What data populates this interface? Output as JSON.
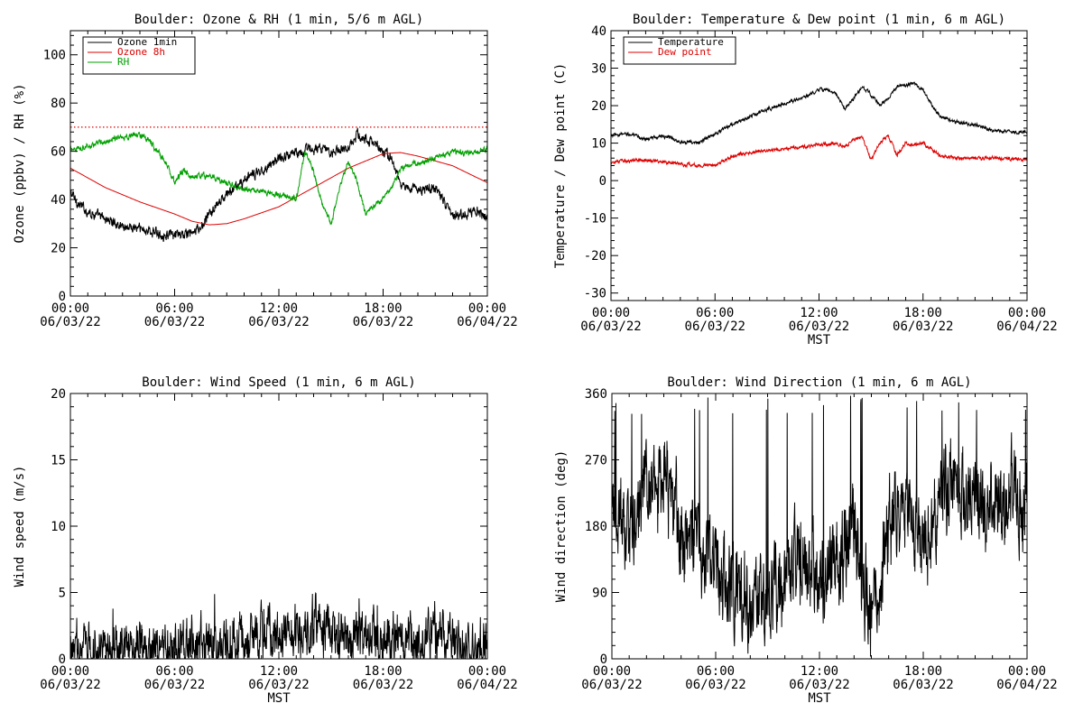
{
  "chart_data": [
    {
      "id": "ozone",
      "type": "line",
      "title": "Boulder: Ozone & RH (1 min, 5/6 m AGL)",
      "ylabel": "Ozone (ppbv) / RH (%)",
      "xlabel": "",
      "xlim": [
        0,
        24
      ],
      "ylim": [
        0,
        110
      ],
      "yticks": [
        0,
        20,
        40,
        60,
        80,
        100
      ],
      "xtick_labels": [
        {
          "x": 0,
          "time": "00:00",
          "date": "06/03/22"
        },
        {
          "x": 6,
          "time": "06:00",
          "date": "06/03/22"
        },
        {
          "x": 12,
          "time": "12:00",
          "date": "06/03/22"
        },
        {
          "x": 18,
          "time": "18:00",
          "date": "06/03/22"
        },
        {
          "x": 24,
          "time": "00:00",
          "date": "06/04/22"
        }
      ],
      "reference_line": {
        "y": 70,
        "color": "#dd0000",
        "style": "dotted"
      },
      "legend": {
        "position": "top-left"
      },
      "series": [
        {
          "name": "Ozone 1min",
          "color": "#000000",
          "noise": 1.6,
          "x": [
            0,
            0.5,
            1,
            2,
            3,
            4,
            5,
            6,
            7,
            7.5,
            8,
            9,
            10,
            11,
            12,
            13,
            14,
            15,
            16,
            16.5,
            17,
            17.5,
            18,
            18.5,
            19,
            20,
            21,
            22,
            23,
            23.5,
            24
          ],
          "y": [
            43,
            38,
            35,
            32,
            29,
            28,
            26,
            25,
            26,
            28,
            34,
            42,
            48,
            52,
            57,
            60,
            61,
            60,
            62,
            67,
            65,
            63,
            60,
            57,
            46,
            44,
            45,
            33,
            35,
            36,
            31
          ]
        },
        {
          "name": "Ozone 8h",
          "color": "#dd0000",
          "noise": 0,
          "x": [
            0,
            2,
            4,
            6,
            7,
            8,
            9,
            10,
            12,
            14,
            16,
            18,
            19,
            20,
            22,
            24
          ],
          "y": [
            53,
            45,
            39,
            34,
            31,
            29.5,
            30,
            32,
            37,
            45,
            53,
            59,
            59.5,
            58,
            54,
            47
          ]
        },
        {
          "name": "RH",
          "color": "#00a000",
          "noise": 0.9,
          "x": [
            0,
            1,
            2,
            3,
            4,
            4.5,
            5,
            5.5,
            6,
            6.5,
            7,
            8,
            9,
            10,
            11,
            12,
            13,
            13.5,
            14,
            14.5,
            15,
            15.5,
            16,
            16.5,
            17,
            17.5,
            18,
            18.5,
            19,
            20,
            21,
            22,
            23,
            24
          ],
          "y": [
            61,
            62,
            64,
            66,
            67,
            65,
            60,
            55,
            47,
            52,
            49,
            50,
            47,
            44,
            43,
            42,
            40,
            60,
            52,
            38,
            30,
            45,
            56,
            47,
            34,
            37,
            40,
            45,
            53,
            55,
            57,
            60,
            59,
            61
          ]
        }
      ]
    },
    {
      "id": "temp",
      "type": "line",
      "title": "Boulder: Temperature & Dew point (1 min, 6 m AGL)",
      "ylabel": "Temperature / Dew point (C)",
      "xlabel": "MST",
      "xlim": [
        0,
        24
      ],
      "ylim": [
        -32,
        40
      ],
      "yticks": [
        -30,
        -20,
        -10,
        0,
        10,
        20,
        30,
        40
      ],
      "xtick_labels": [
        {
          "x": 0,
          "time": "00:00",
          "date": "06/03/22"
        },
        {
          "x": 6,
          "time": "06:00",
          "date": "06/03/22"
        },
        {
          "x": 12,
          "time": "12:00",
          "date": "06/03/22"
        },
        {
          "x": 18,
          "time": "18:00",
          "date": "06/03/22"
        },
        {
          "x": 24,
          "time": "00:00",
          "date": "06/04/22"
        }
      ],
      "legend": {
        "position": "top-left"
      },
      "series": [
        {
          "name": "Temperature",
          "color": "#000000",
          "noise": 0.35,
          "x": [
            0,
            1,
            2,
            3,
            4,
            5,
            6,
            7,
            8,
            9,
            10,
            11,
            12,
            12.5,
            13,
            13.5,
            14,
            14.5,
            15,
            15.5,
            16,
            16.5,
            17,
            17.5,
            18,
            18.5,
            19,
            20,
            21,
            22,
            23,
            24
          ],
          "y": [
            12,
            12.5,
            11,
            12,
            10.5,
            10,
            12.5,
            15,
            17,
            19,
            20.5,
            22,
            24,
            24.5,
            23,
            19,
            22,
            25,
            23,
            20,
            22,
            25,
            25.5,
            26,
            24,
            20,
            17,
            15.5,
            15,
            13.5,
            13,
            13
          ]
        },
        {
          "name": "Dew point",
          "color": "#dd0000",
          "noise": 0.35,
          "x": [
            0,
            2,
            4,
            5,
            6,
            7,
            8,
            10,
            12,
            13,
            13.5,
            14,
            14.5,
            15,
            15.5,
            16,
            16.5,
            17,
            17.5,
            18,
            19,
            20,
            22,
            24
          ],
          "y": [
            5,
            5.5,
            4.5,
            4,
            4,
            6.5,
            7.5,
            8.5,
            9.5,
            10,
            9,
            11,
            12,
            5.5,
            10,
            12,
            7,
            10,
            9.5,
            10,
            6.5,
            6,
            6,
            5.5
          ]
        }
      ]
    },
    {
      "id": "wspd",
      "type": "line",
      "title": "Boulder: Wind Speed (1 min, 6 m AGL)",
      "ylabel": "Wind speed (m/s)",
      "xlabel": "MST",
      "xlim": [
        0,
        24
      ],
      "ylim": [
        0,
        20
      ],
      "yticks": [
        0,
        5,
        10,
        15,
        20
      ],
      "xtick_labels": [
        {
          "x": 0,
          "time": "00:00",
          "date": "06/03/22"
        },
        {
          "x": 6,
          "time": "06:00",
          "date": "06/03/22"
        },
        {
          "x": 12,
          "time": "12:00",
          "date": "06/03/22"
        },
        {
          "x": 18,
          "time": "18:00",
          "date": "06/03/22"
        },
        {
          "x": 24,
          "time": "00:00",
          "date": "06/04/22"
        }
      ],
      "series": [
        {
          "name": "",
          "color": "#000000",
          "noise": 1.5,
          "clip_min": 0.05,
          "x": [
            0,
            3,
            6,
            9,
            11,
            12,
            13,
            14,
            15,
            17,
            18,
            20,
            21,
            22,
            24
          ],
          "y": [
            0.6,
            0.7,
            0.8,
            1.0,
            1.6,
            2.2,
            1.6,
            3.0,
            1.6,
            1.6,
            1.3,
            1.1,
            2.0,
            1.0,
            0.7
          ]
        }
      ]
    },
    {
      "id": "wdir",
      "type": "line",
      "title": "Boulder: Wind Direction (1 min, 6 m AGL)",
      "ylabel": "Wind direction (deg)",
      "xlabel": "MST",
      "xlim": [
        0,
        24
      ],
      "ylim": [
        0,
        360
      ],
      "yticks": [
        0,
        90,
        180,
        270,
        360
      ],
      "xtick_labels": [
        {
          "x": 0,
          "time": "00:00",
          "date": "06/03/22"
        },
        {
          "x": 6,
          "time": "06:00",
          "date": "06/03/22"
        },
        {
          "x": 12,
          "time": "12:00",
          "date": "06/03/22"
        },
        {
          "x": 18,
          "time": "18:00",
          "date": "06/03/22"
        },
        {
          "x": 24,
          "time": "00:00",
          "date": "06/04/22"
        }
      ],
      "series": [
        {
          "name": "",
          "color": "#000000",
          "noise": 45,
          "clip_min": 3,
          "clip_max": 357,
          "x": [
            0,
            1,
            2,
            3,
            4,
            5,
            6,
            7,
            8,
            9,
            10,
            11,
            12,
            13,
            14,
            15,
            16,
            17,
            18,
            19,
            20,
            21,
            22,
            23,
            24
          ],
          "y": [
            190,
            170,
            230,
            250,
            160,
            150,
            110,
            90,
            70,
            90,
            100,
            130,
            110,
            140,
            170,
            60,
            180,
            210,
            140,
            220,
            230,
            230,
            210,
            230,
            200
          ]
        }
      ]
    }
  ]
}
